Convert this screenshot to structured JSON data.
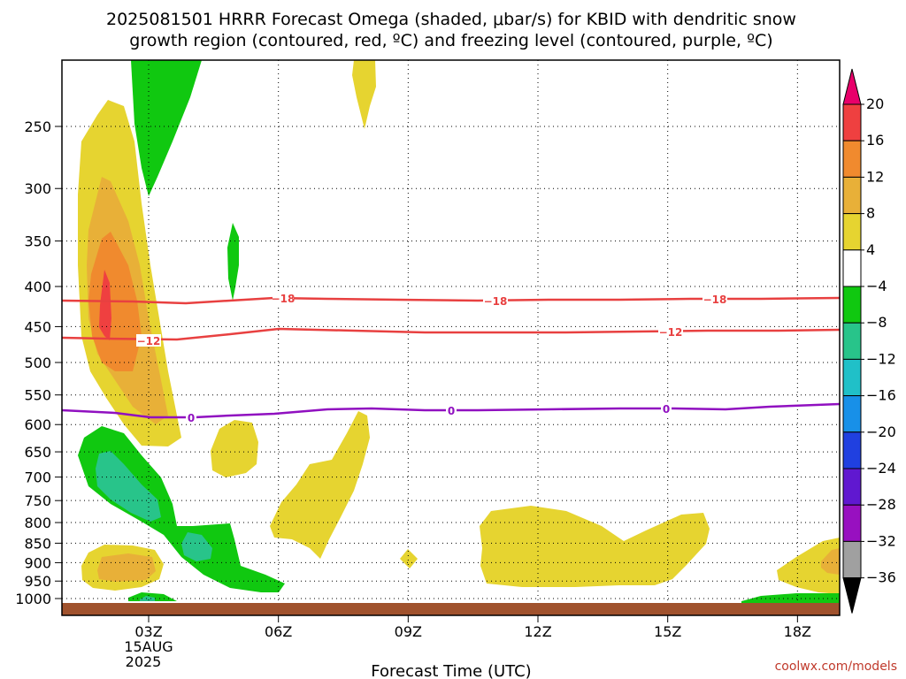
{
  "chart_data": {
    "type": "heatmap",
    "title_line1": "2025081501 HRRR Forecast Omega (shaded, μbar/s) for KBID with dendritic snow",
    "title_line2": "growth region (contoured, red, ºC) and freezing level (contoured, purple, ºC)",
    "xlabel": "Forecast Time (UTC)",
    "watermark": "coolwx.com/models",
    "x_ticks": [
      "03Z",
      "06Z",
      "09Z",
      "12Z",
      "15Z",
      "18Z"
    ],
    "x_date_label_1": "15AUG",
    "x_date_label_2": "2025",
    "y_ticks": [
      250,
      300,
      350,
      400,
      450,
      500,
      550,
      600,
      650,
      700,
      750,
      800,
      850,
      900,
      950,
      1000
    ],
    "colorbar": {
      "labels": [
        "20",
        "16",
        "12",
        "8",
        "4",
        "−4",
        "−8",
        "−12",
        "−16",
        "−20",
        "−24",
        "−28",
        "−32",
        "−36"
      ],
      "colors": [
        "#e8006a",
        "#ef4040",
        "#f08a2e",
        "#e8b038",
        "#e6d430",
        "#ffffff",
        "#10c810",
        "#28c48a",
        "#20c0c8",
        "#1890e8",
        "#2040e0",
        "#6018d0",
        "#9810c0",
        "#a0a0a0",
        "#000000"
      ]
    },
    "contours": [
      {
        "value": -18,
        "labels": [
          "−18",
          "−18",
          "−18"
        ],
        "color": "#e84040"
      },
      {
        "value": -12,
        "labels": [
          "−12",
          "−12"
        ],
        "color": "#e84040"
      },
      {
        "value": 0,
        "labels": [
          "0",
          "0",
          "0"
        ],
        "color": "#9010c0"
      }
    ]
  }
}
